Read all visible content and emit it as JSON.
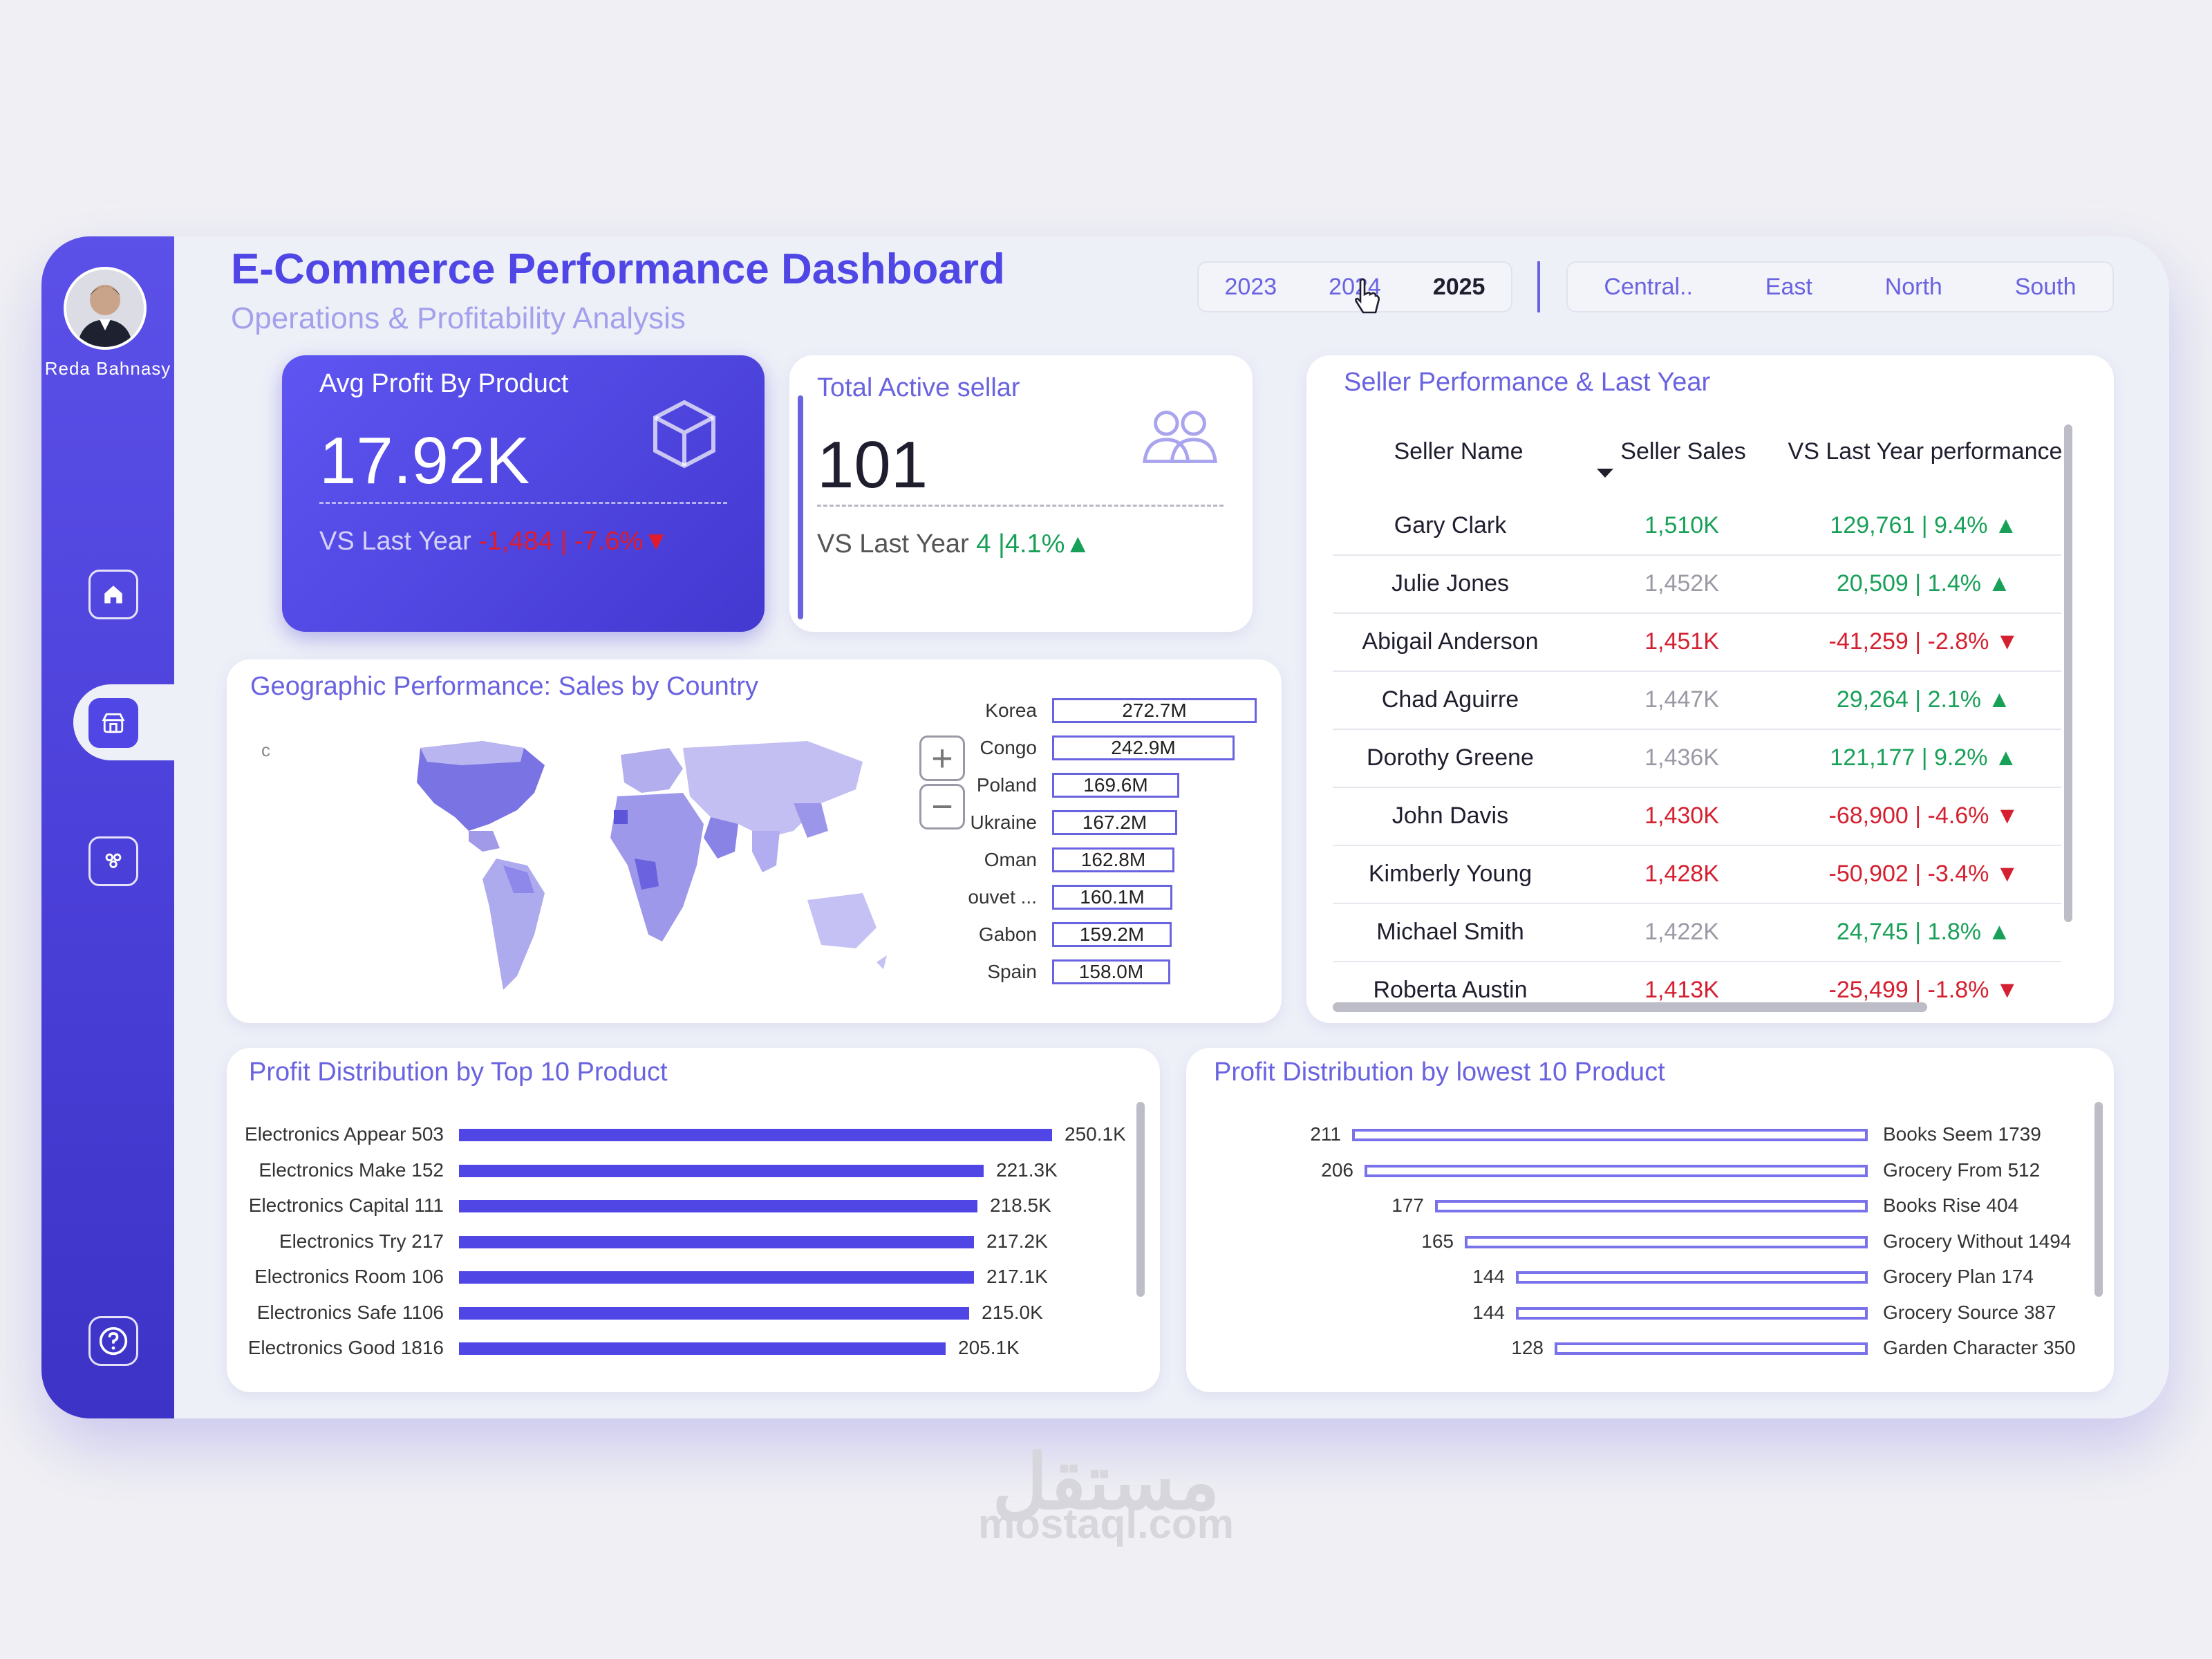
{
  "header": {
    "title": "E-Commerce Performance Dashboard",
    "subtitle": "Operations & Profitability Analysis"
  },
  "user": {
    "name": "Reda Bahnasy"
  },
  "year_slicer": {
    "options": [
      "2023",
      "2024",
      "2025"
    ],
    "selected": "2025"
  },
  "region_slicer": {
    "options": [
      "Central..",
      "East",
      "North",
      "South"
    ]
  },
  "kpi_profit": {
    "title": "Avg Profit By Product",
    "value": "17.92K",
    "vs_label": "VS Last Year",
    "vs_value": "-1,484 | -7.6%",
    "vs_arrow": "▼"
  },
  "kpi_sellers": {
    "title": "Total Active sellar",
    "value": "101",
    "vs_label": "VS Last Year",
    "vs_value": "4 |4.1%",
    "vs_arrow": "▲"
  },
  "seller_table": {
    "title": "Seller Performance & Last Year",
    "columns": [
      "Seller Name",
      "Seller Sales",
      "VS Last Year performance"
    ],
    "rows": [
      {
        "name": "Gary Clark",
        "sales": "1,510K",
        "vs": "129,761 | 9.4%",
        "dir": "up"
      },
      {
        "name": "Julie Jones",
        "sales": "1,452K",
        "vs": "20,509 | 1.4%",
        "dir": "up"
      },
      {
        "name": "Abigail Anderson",
        "sales": "1,451K",
        "vs": "-41,259 | -2.8%",
        "dir": "down"
      },
      {
        "name": "Chad Aguirre",
        "sales": "1,447K",
        "vs": "29,264 | 2.1%",
        "dir": "up"
      },
      {
        "name": "Dorothy Greene",
        "sales": "1,436K",
        "vs": "121,177 | 9.2%",
        "dir": "up"
      },
      {
        "name": "John Davis",
        "sales": "1,430K",
        "vs": "-68,900 | -4.6%",
        "dir": "down"
      },
      {
        "name": "Kimberly Young",
        "sales": "1,428K",
        "vs": "-50,902 | -3.4%",
        "dir": "down"
      },
      {
        "name": "Michael Smith",
        "sales": "1,422K",
        "vs": "24,745 | 1.8%",
        "dir": "up"
      },
      {
        "name": "Roberta Austin",
        "sales": "1,413K",
        "vs": "-25,499 | -1.8%",
        "dir": "down"
      }
    ]
  },
  "geo": {
    "title": "Geographic Performance: Sales by Country",
    "countries": [
      {
        "name": "Korea",
        "value": 272.7,
        "label": "272.7M"
      },
      {
        "name": "Congo",
        "value": 242.9,
        "label": "242.9M"
      },
      {
        "name": "Poland",
        "value": 169.6,
        "label": "169.6M"
      },
      {
        "name": "Ukraine",
        "value": 167.2,
        "label": "167.2M"
      },
      {
        "name": "Oman",
        "value": 162.8,
        "label": "162.8M"
      },
      {
        "name": "ouvet ...",
        "value": 160.1,
        "label": "160.1M"
      },
      {
        "name": "Gabon",
        "value": 159.2,
        "label": "159.2M"
      },
      {
        "name": "Spain",
        "value": 158.0,
        "label": "158.0M"
      }
    ]
  },
  "top_products": {
    "title": "Profit Distribution by Top 10 Product",
    "items": [
      {
        "name": "Electronics Appear 503",
        "value": 250.1,
        "label": "250.1K"
      },
      {
        "name": "Electronics Make 152",
        "value": 221.3,
        "label": "221.3K"
      },
      {
        "name": "Electronics Capital 111",
        "value": 218.5,
        "label": "218.5K"
      },
      {
        "name": "Electronics Try 217",
        "value": 217.2,
        "label": "217.2K"
      },
      {
        "name": "Electronics Room 106",
        "value": 217.1,
        "label": "217.1K"
      },
      {
        "name": "Electronics Safe 1106",
        "value": 215.0,
        "label": "215.0K"
      },
      {
        "name": "Electronics Good 1816",
        "value": 205.1,
        "label": "205.1K"
      }
    ]
  },
  "lowest_products": {
    "title": "Profit Distribution by lowest 10 Product",
    "items": [
      {
        "name": "Books Seem 1739",
        "value": 211,
        "label": "211"
      },
      {
        "name": "Grocery From 512",
        "value": 206,
        "label": "206"
      },
      {
        "name": "Books Rise 404",
        "value": 177,
        "label": "177"
      },
      {
        "name": "Grocery Without 1494",
        "value": 165,
        "label": "165"
      },
      {
        "name": "Grocery Plan 174",
        "value": 144,
        "label": "144"
      },
      {
        "name": "Grocery Source 387",
        "value": 144,
        "label": "144"
      },
      {
        "name": "Garden Character 350",
        "value": 128,
        "label": "128"
      }
    ]
  },
  "watermark": {
    "arabic": "مستقل",
    "latin": "mostaql.com"
  },
  "colors": {
    "accent": "#4f46e5",
    "up": "#18a058",
    "down": "#d42030"
  }
}
